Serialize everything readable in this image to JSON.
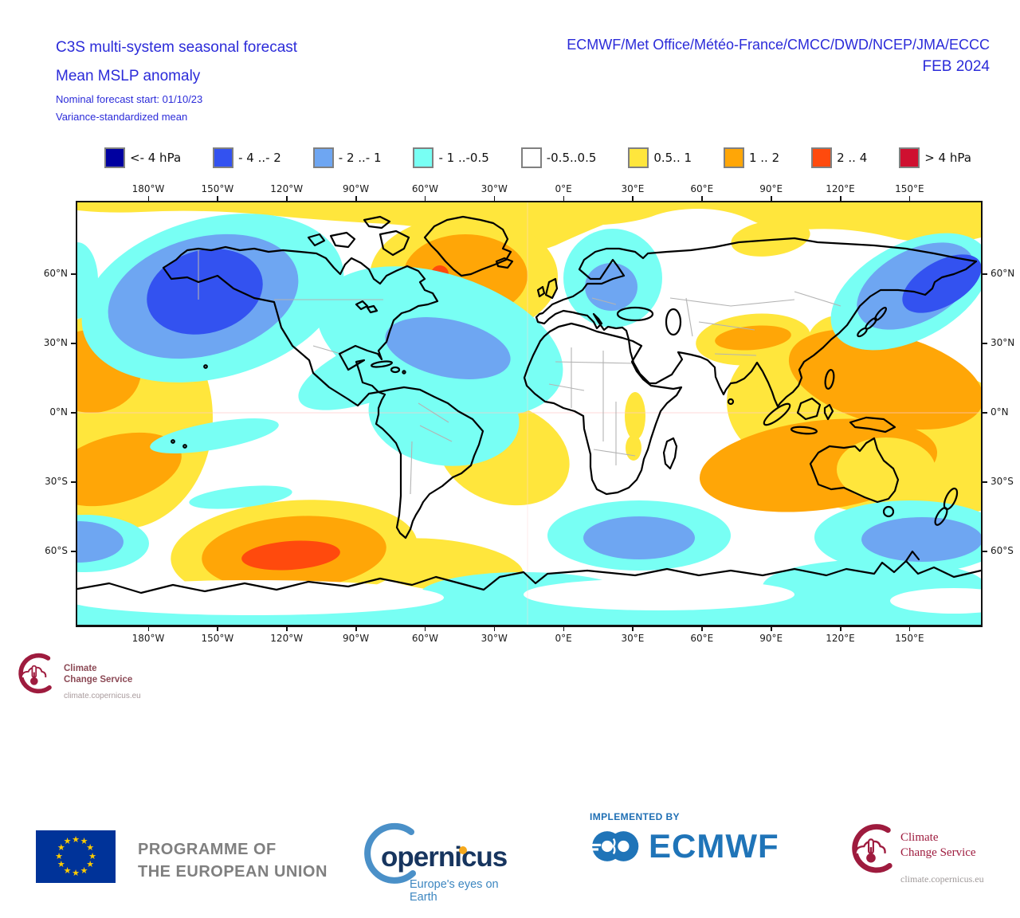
{
  "header": {
    "title_line1": "C3S multi-system seasonal forecast",
    "title_line2": "Mean MSLP anomaly",
    "note_line1": "Nominal forecast start: 01/10/23",
    "note_line2": "Variance-standardized mean",
    "centers": "ECMWF/Met Office/Météo-France/CMCC/DWD/NCEP/JMA/ECCC",
    "valid": "FEB 2024",
    "text_color": "#2b2bd9"
  },
  "legend": {
    "items": [
      {
        "label": "<- 4 hPa",
        "color": "#0000a0"
      },
      {
        "label": "- 4 ..- 2",
        "color": "#3352f0"
      },
      {
        "label": "- 2 ..- 1",
        "color": "#6ea6f2"
      },
      {
        "label": "- 1 ..-0.5",
        "color": "#78fff4"
      },
      {
        "label": "-0.5..0.5",
        "color": "#ffffff"
      },
      {
        "label": "0.5.. 1",
        "color": "#ffe63c"
      },
      {
        "label": "1 .. 2",
        "color": "#ffa607"
      },
      {
        "label": "2 .. 4",
        "color": "#ff4a0d"
      },
      {
        "label": "> 4 hPa",
        "color": "#cf1030"
      }
    ]
  },
  "map": {
    "lon_labels": [
      "180°W",
      "150°W",
      "120°W",
      "90°W",
      "60°W",
      "30°W",
      "0°E",
      "30°E",
      "60°E",
      "90°E",
      "120°E",
      "150°E"
    ],
    "lat_labels": [
      "60°N",
      "30°N",
      "0°N",
      "30°S",
      "60°S"
    ]
  },
  "badge": {
    "line1": "Climate",
    "line2": "Change Service",
    "url": "climate.copernicus.eu"
  },
  "footer": {
    "eu_line1": "PROGRAMME OF",
    "eu_line2": "THE EUROPEAN UNION",
    "copernicus_wordmark": "opernicus",
    "copernicus_tagline": "Europe's eyes on Earth",
    "implemented_by": "IMPLEMENTED BY",
    "ecmwf": "ECMWF",
    "c3s_line1": "Climate",
    "c3s_line2": "Change Service",
    "c3s_url": "climate.copernicus.eu"
  },
  "chart_data": {
    "type": "heatmap",
    "subtype": "filled-contour world map, equirectangular projection",
    "title": "C3S multi-system seasonal forecast — Mean MSLP anomaly",
    "variable": "Mean sea-level pressure anomaly, variance-standardized multi-model mean",
    "units": "hPa",
    "forecast_start": "01/10/23",
    "valid_month": "FEB 2024",
    "models": [
      "ECMWF",
      "Met Office",
      "Météo-France",
      "CMCC",
      "DWD",
      "NCEP",
      "JMA",
      "ECCC"
    ],
    "legend_position": "top, horizontal row of 9 color bins",
    "bins": [
      {
        "range": "< -4",
        "color": "#0000a0"
      },
      {
        "range": "-4 .. -2",
        "color": "#3352f0"
      },
      {
        "range": "-2 .. -1",
        "color": "#6ea6f2"
      },
      {
        "range": "-1 .. -0.5",
        "color": "#78fff4"
      },
      {
        "range": "-0.5 .. 0.5",
        "color": "#ffffff"
      },
      {
        "range": "0.5 .. 1",
        "color": "#ffe63c"
      },
      {
        "range": "1 .. 2",
        "color": "#ffa607"
      },
      {
        "range": "2 .. 4",
        "color": "#ff4a0d"
      },
      {
        "range": "> 4",
        "color": "#cf1030"
      }
    ],
    "x_axis": {
      "label": "longitude",
      "ticks": [
        "180°W",
        "150°W",
        "120°W",
        "90°W",
        "60°W",
        "30°W",
        "0°E",
        "30°E",
        "60°E",
        "90°E",
        "120°E",
        "150°E"
      ],
      "shown": "top and bottom"
    },
    "y_axis": {
      "label": "latitude",
      "ticks": [
        "60°N",
        "30°N",
        "0°N",
        "30°S",
        "60°S"
      ],
      "shown": "left and right"
    },
    "notable_regions": [
      {
        "region": "North Pacific / Gulf of Alaska",
        "anomaly_hPa": "-4..-2 core with -2..-1 and -1..-0.5 rings"
      },
      {
        "region": "Greenland / Baffin Bay",
        "anomaly_hPa": "+1..+2 core, small +2..+4 spot, +0.5..+1 ring"
      },
      {
        "region": "Eastern North America and western North Atlantic",
        "anomaly_hPa": "-1..-0.5 with -2..-1 core"
      },
      {
        "region": "Scandinavia / northern Europe",
        "anomaly_hPa": "-1..-0.5 with -2..-1 core"
      },
      {
        "region": "Northwest Pacific near Kamchatka",
        "anomaly_hPa": "-4..-2 core with -2..-1 ring"
      },
      {
        "region": "Subtropical northeast Pacific (map left edge)",
        "anomaly_hPa": "+1..+2 cores inside +0.5..+1 area"
      },
      {
        "region": "Tibetan Plateau / South Asia",
        "anomaly_hPa": "+1..+2 patch inside +0.5..+1"
      },
      {
        "region": "Maritime Continent and eastern Indian Ocean",
        "anomaly_hPa": "+1..+2, Australia +0.5..+1"
      },
      {
        "region": "South Pacific near 60°S, 120–90°W",
        "anomaly_hPa": "+2..+4 core inside +1..+2 and +0.5..+1 rings"
      },
      {
        "region": "South Atlantic east of Brazil",
        "anomaly_hPa": "+0.5..+1"
      },
      {
        "region": "Southern Indian Ocean near 60°S",
        "anomaly_hPa": "-2..-1 core with -1..-0.5 ring"
      },
      {
        "region": "South of New Zealand near 60°S",
        "anomaly_hPa": "-2..-1 core with -1..-0.5 ring"
      },
      {
        "region": "High northern latitudes band",
        "anomaly_hPa": "+0.5..+1"
      },
      {
        "region": "Antarctic coastal band",
        "anomaly_hPa": "-1..-0.5 patches"
      }
    ]
  }
}
